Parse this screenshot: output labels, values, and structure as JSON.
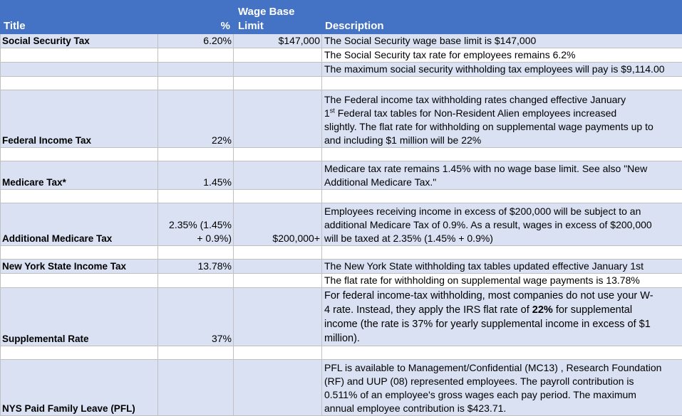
{
  "headers": {
    "title": "Title",
    "percent": "%",
    "wage_base_line1": "Wage Base",
    "wage_base_line2": "Limit",
    "description": "Description"
  },
  "rows": {
    "ss": {
      "title": "Social Security Tax",
      "percent": "6.20%",
      "wage_base": "$147,000",
      "desc1": "The Social Security wage base limit is $147,000",
      "desc2": "The Social Security tax rate for employees remains 6.2%",
      "desc3": "The maximum social security withholding tax employees will pay is $9,114.00"
    },
    "fit": {
      "title": "Federal Income Tax",
      "percent": "22%",
      "desc_a": "The Federal income tax withholding rates changed effective January",
      "desc_b1": "1",
      "desc_sup": "st",
      "desc_b2": " Federal tax tables for Non-Resident Alien employees increased",
      "desc_c": "slightly. The flat rate for withholding on supplemental wage payments up to",
      "desc_d": "and including $1 million will be 22%"
    },
    "medicare": {
      "title": "Medicare Tax*",
      "percent": "1.45%",
      "desc_a": "Medicare tax rate remains 1.45% with no wage base limit. See also \"New",
      "desc_b": "Additional Medicare Tax.\""
    },
    "addl": {
      "title": "Additional Medicare Tax",
      "percent_a": "2.35% (1.45%",
      "percent_b": "+ 0.9%)",
      "wage_base": "$200,000+",
      "desc_a": "Employees receiving income in excess of $200,000 will be subject to an",
      "desc_b": "additional Medicare Tax of 0.9%. As a result, wages in excess of $200,000",
      "desc_c": "will be taxed at 2.35% (1.45% + 0.9%)"
    },
    "nys": {
      "title": "New York State Income Tax",
      "percent": "13.78%",
      "desc1": "The New York State withholding tax tables updated effective January 1st",
      "desc2": "The flat rate for withholding on supplemental wage payments is 13.78%"
    },
    "supp": {
      "title": "Supplemental Rate",
      "percent": "37%",
      "desc_a": "For federal income-tax withholding, most companies do not use your W-",
      "desc_b1": "4 rate. Instead, they apply the IRS flat rate of ",
      "desc_bold": "22%",
      "desc_b2": " for supplemental",
      "desc_c": "income (the rate is 37% for yearly supplemental income in excess of $1",
      "desc_d": "million)."
    },
    "pfl": {
      "title": "NYS Paid Family Leave (PFL)",
      "desc_a": "PFL is available to Management/Confidential (MC13) , Research Foundation",
      "desc_b": "(RF) and UUP (08) represented employees.  The payroll contribution is",
      "desc_c": "0.511% of an employee's gross wages each pay period. The maximum",
      "desc_d": "annual employee contribution is $423.71."
    }
  }
}
